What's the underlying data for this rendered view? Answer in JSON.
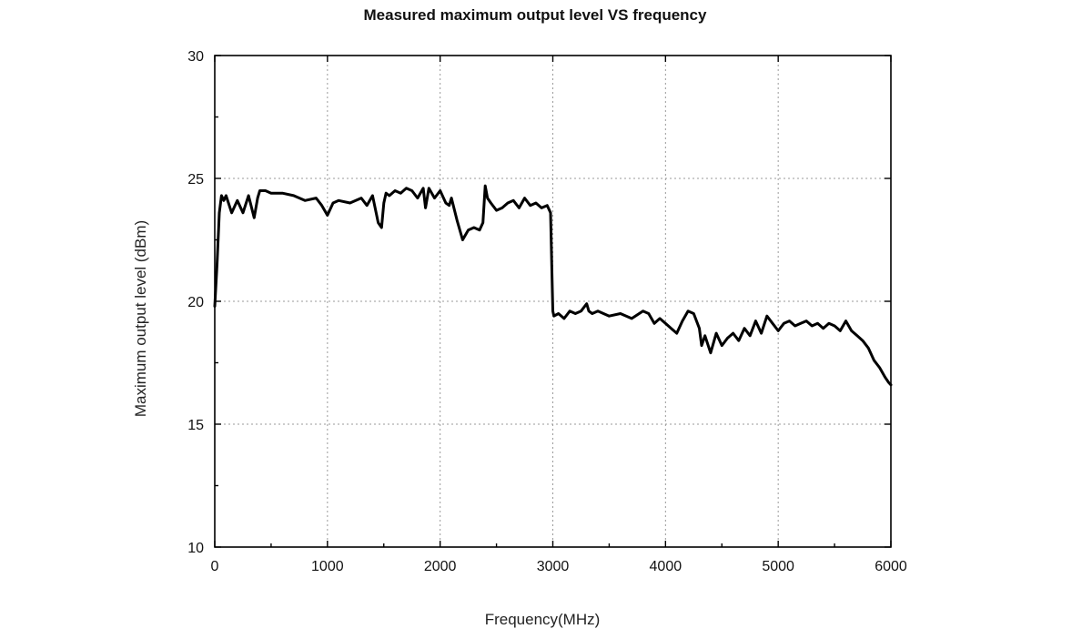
{
  "chart_data": {
    "type": "line",
    "title": "Measured maximum output level VS frequency",
    "xlabel": "Frequency(MHz)",
    "ylabel": "Maximum output level (dBm)",
    "xlim": [
      0,
      6000
    ],
    "ylim": [
      10,
      30
    ],
    "xticks": [
      "0",
      "1000",
      "2000",
      "3000",
      "4000",
      "5000",
      "6000"
    ],
    "yticks": [
      "10",
      "15",
      "20",
      "25",
      "30"
    ],
    "grid": true,
    "line_color": "#000000",
    "series": [
      {
        "x": [
          0,
          20,
          40,
          60,
          80,
          100,
          150,
          200,
          250,
          300,
          350,
          380,
          400,
          450,
          500,
          600,
          700,
          800,
          900,
          950,
          1000,
          1050,
          1100,
          1200,
          1300,
          1350,
          1400,
          1450,
          1480,
          1500,
          1520,
          1550,
          1600,
          1650,
          1700,
          1750,
          1800,
          1850,
          1870,
          1900,
          1950,
          2000,
          2050,
          2080,
          2100,
          2150,
          2200,
          2250,
          2300,
          2350,
          2380,
          2400,
          2420,
          2450,
          2500,
          2550,
          2600,
          2650,
          2700,
          2750,
          2800,
          2850,
          2900,
          2950,
          2980,
          3000,
          3010,
          3050,
          3100,
          3150,
          3200,
          3250,
          3300,
          3320,
          3350,
          3400,
          3500,
          3600,
          3700,
          3800,
          3850,
          3900,
          3950,
          4000,
          4050,
          4100,
          4150,
          4200,
          4250,
          4300,
          4320,
          4350,
          4400,
          4450,
          4500,
          4550,
          4600,
          4650,
          4700,
          4750,
          4800,
          4850,
          4900,
          4950,
          5000,
          5050,
          5100,
          5150,
          5200,
          5250,
          5300,
          5350,
          5400,
          5450,
          5500,
          5550,
          5600,
          5650,
          5700,
          5750,
          5800,
          5850,
          5900,
          5950,
          5980,
          6000
        ],
        "y": [
          19.8,
          21.5,
          23.6,
          24.3,
          24.1,
          24.3,
          23.6,
          24.1,
          23.6,
          24.3,
          23.4,
          24.2,
          24.5,
          24.5,
          24.4,
          24.4,
          24.3,
          24.1,
          24.2,
          23.9,
          23.5,
          24.0,
          24.1,
          24.0,
          24.2,
          23.9,
          24.3,
          23.2,
          23.0,
          24.0,
          24.4,
          24.3,
          24.5,
          24.4,
          24.6,
          24.5,
          24.2,
          24.6,
          23.8,
          24.6,
          24.2,
          24.5,
          24.0,
          23.9,
          24.2,
          23.3,
          22.5,
          22.9,
          23.0,
          22.9,
          23.2,
          24.7,
          24.2,
          24.0,
          23.7,
          23.8,
          24.0,
          24.1,
          23.8,
          24.2,
          23.9,
          24.0,
          23.8,
          23.9,
          23.6,
          19.6,
          19.4,
          19.5,
          19.3,
          19.6,
          19.5,
          19.6,
          19.9,
          19.6,
          19.5,
          19.6,
          19.4,
          19.5,
          19.3,
          19.6,
          19.5,
          19.1,
          19.3,
          19.1,
          18.9,
          18.7,
          19.2,
          19.6,
          19.5,
          18.9,
          18.2,
          18.6,
          17.9,
          18.7,
          18.2,
          18.5,
          18.7,
          18.4,
          18.9,
          18.6,
          19.2,
          18.7,
          19.4,
          19.1,
          18.8,
          19.1,
          19.2,
          19.0,
          19.1,
          19.2,
          19.0,
          19.1,
          18.9,
          19.1,
          19.0,
          18.8,
          19.2,
          18.8,
          18.6,
          18.4,
          18.1,
          17.6,
          17.3,
          16.9,
          16.7,
          16.6
        ]
      }
    ]
  }
}
